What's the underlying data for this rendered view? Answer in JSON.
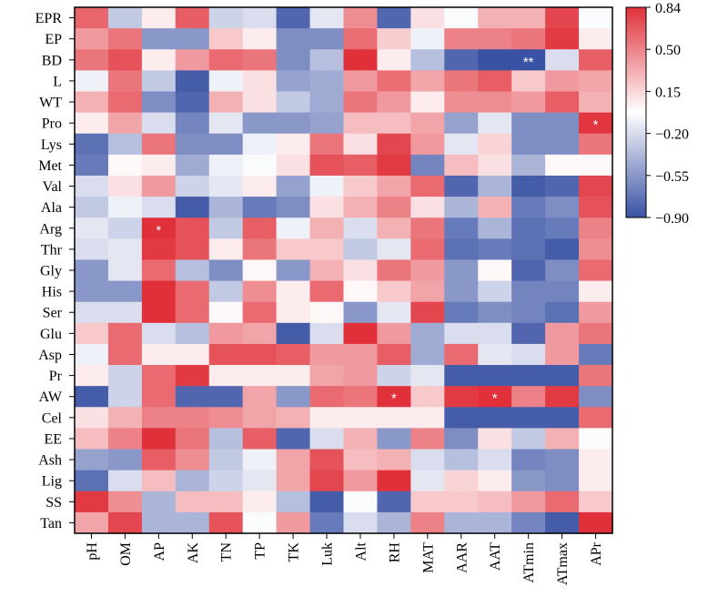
{
  "chart_data": {
    "type": "heatmap",
    "rows": [
      "EPR",
      "EP",
      "BD",
      "L",
      "WT",
      "Pro",
      "Lys",
      "Met",
      "Val",
      "Ala",
      "Arg",
      "Thr",
      "Gly",
      "His",
      "Ser",
      "Glu",
      "Asp",
      "Pr",
      "AW",
      "Cel",
      "EE",
      "Ash",
      "Lig",
      "SS",
      "Tan"
    ],
    "cols": [
      "pH",
      "OM",
      "AP",
      "AK",
      "TN",
      "TP",
      "TK",
      "Luk",
      "Alt",
      "RH",
      "MAT",
      "AAR",
      "AAT",
      "ATmin",
      "ATmax",
      "APr"
    ],
    "values": [
      [
        0.62,
        -0.3,
        0.05,
        0.65,
        -0.25,
        -0.2,
        -0.8,
        -0.15,
        0.45,
        -0.8,
        0.1,
        -0.05,
        0.3,
        0.3,
        0.75,
        -0.05
      ],
      [
        0.4,
        0.55,
        -0.55,
        -0.55,
        0.2,
        0.05,
        -0.6,
        -0.6,
        0.58,
        0.18,
        -0.1,
        0.5,
        0.5,
        0.55,
        0.8,
        0.05
      ],
      [
        0.55,
        0.7,
        0.05,
        0.4,
        0.6,
        0.55,
        -0.6,
        -0.35,
        0.84,
        0.05,
        -0.35,
        -0.8,
        -0.9,
        -0.9,
        -0.2,
        0.65
      ],
      [
        -0.1,
        0.55,
        -0.3,
        -0.85,
        -0.1,
        0.1,
        -0.5,
        -0.45,
        0.4,
        0.58,
        0.35,
        0.55,
        0.65,
        0.2,
        0.4,
        0.35
      ],
      [
        0.3,
        0.6,
        -0.6,
        -0.8,
        0.3,
        0.1,
        -0.3,
        -0.45,
        0.55,
        0.4,
        0.05,
        0.45,
        0.45,
        0.4,
        0.65,
        0.3
      ],
      [
        0.05,
        0.35,
        -0.2,
        -0.65,
        -0.15,
        -0.55,
        -0.55,
        -0.5,
        0.25,
        0.25,
        0.35,
        -0.5,
        -0.15,
        -0.6,
        -0.6,
        0.82
      ],
      [
        -0.75,
        -0.35,
        0.55,
        -0.6,
        -0.6,
        -0.1,
        0.05,
        0.55,
        0.1,
        0.75,
        0.4,
        -0.15,
        0.15,
        -0.6,
        -0.6,
        0.55
      ],
      [
        -0.7,
        0.0,
        0.05,
        -0.45,
        -0.1,
        -0.05,
        0.1,
        0.7,
        0.65,
        0.8,
        -0.65,
        0.25,
        0.1,
        -0.4,
        0.0,
        0.0
      ],
      [
        -0.2,
        0.1,
        0.4,
        -0.25,
        -0.15,
        0.05,
        -0.5,
        -0.1,
        0.2,
        0.35,
        0.6,
        -0.8,
        -0.4,
        -0.85,
        -0.8,
        0.75
      ],
      [
        -0.3,
        -0.1,
        -0.2,
        -0.85,
        -0.4,
        -0.7,
        -0.6,
        0.1,
        0.3,
        0.5,
        0.1,
        -0.4,
        0.3,
        -0.7,
        -0.6,
        0.7
      ],
      [
        -0.15,
        -0.25,
        0.84,
        0.7,
        -0.3,
        0.65,
        -0.1,
        0.3,
        -0.2,
        0.3,
        0.55,
        -0.7,
        -0.4,
        -0.75,
        -0.7,
        0.5
      ],
      [
        -0.2,
        -0.15,
        0.8,
        0.7,
        0.05,
        0.55,
        0.2,
        0.2,
        -0.3,
        -0.15,
        0.6,
        -0.75,
        -0.7,
        -0.75,
        -0.85,
        0.45
      ],
      [
        -0.55,
        -0.15,
        0.6,
        -0.35,
        -0.6,
        0.0,
        -0.55,
        0.3,
        0.1,
        0.55,
        0.4,
        -0.55,
        0.0,
        -0.8,
        -0.6,
        0.6
      ],
      [
        -0.55,
        -0.55,
        0.84,
        0.6,
        -0.3,
        0.45,
        0.05,
        0.6,
        0.0,
        0.2,
        0.35,
        -0.55,
        -0.25,
        -0.65,
        -0.65,
        0.05
      ],
      [
        -0.2,
        -0.2,
        0.84,
        0.6,
        0.0,
        0.6,
        0.05,
        0.0,
        -0.55,
        -0.15,
        0.75,
        -0.7,
        -0.6,
        -0.65,
        -0.75,
        0.4
      ],
      [
        0.2,
        0.6,
        -0.2,
        -0.35,
        0.4,
        0.35,
        -0.85,
        -0.2,
        0.84,
        0.4,
        -0.45,
        -0.2,
        -0.2,
        -0.8,
        0.4,
        0.55
      ],
      [
        -0.1,
        0.6,
        0.05,
        0.05,
        0.7,
        0.7,
        0.65,
        0.4,
        0.4,
        0.65,
        -0.45,
        0.6,
        -0.15,
        -0.2,
        0.4,
        -0.7
      ],
      [
        0.05,
        -0.25,
        0.6,
        0.8,
        0.05,
        0.05,
        0.05,
        0.35,
        0.4,
        -0.25,
        -0.15,
        -0.85,
        -0.85,
        -0.85,
        -0.85,
        0.55
      ],
      [
        -0.85,
        -0.25,
        0.6,
        -0.8,
        -0.8,
        0.35,
        -0.55,
        0.6,
        0.55,
        0.84,
        0.2,
        0.8,
        0.84,
        0.5,
        0.8,
        -0.6
      ],
      [
        0.1,
        0.3,
        0.5,
        0.5,
        0.45,
        0.35,
        0.3,
        0.05,
        0.05,
        0.05,
        0.05,
        -0.85,
        -0.85,
        -0.85,
        -0.85,
        0.6
      ],
      [
        0.25,
        0.5,
        0.84,
        0.55,
        -0.35,
        0.65,
        -0.8,
        -0.2,
        0.3,
        -0.55,
        0.5,
        -0.6,
        0.1,
        -0.3,
        0.3,
        -0.05
      ],
      [
        -0.5,
        -0.55,
        0.65,
        0.45,
        -0.3,
        -0.1,
        0.35,
        0.7,
        0.25,
        0.3,
        -0.2,
        -0.35,
        -0.2,
        -0.65,
        -0.6,
        0.05
      ],
      [
        -0.75,
        -0.2,
        0.25,
        -0.4,
        -0.25,
        -0.15,
        0.35,
        0.75,
        0.4,
        0.84,
        -0.15,
        0.15,
        0.05,
        -0.55,
        -0.6,
        0.05
      ],
      [
        0.8,
        0.45,
        -0.4,
        0.25,
        0.25,
        0.05,
        -0.35,
        -0.85,
        -0.05,
        -0.8,
        0.2,
        0.2,
        0.25,
        0.4,
        0.6,
        0.2
      ],
      [
        0.35,
        0.75,
        -0.4,
        -0.4,
        0.7,
        -0.05,
        0.4,
        -0.7,
        -0.2,
        -0.4,
        0.5,
        -0.4,
        -0.4,
        -0.65,
        -0.85,
        0.84
      ]
    ],
    "markers": [
      {
        "row": "BD",
        "col": "ATmin",
        "label": "**"
      },
      {
        "row": "Pro",
        "col": "APr",
        "label": "*"
      },
      {
        "row": "Arg",
        "col": "AP",
        "label": "*"
      },
      {
        "row": "AW",
        "col": "RH",
        "label": "*"
      },
      {
        "row": "AW",
        "col": "AAT",
        "label": "*"
      }
    ],
    "colorbar": {
      "range": [
        -0.9,
        0.84
      ],
      "ticks": [
        "0.84",
        "0.50",
        "0.15",
        "−0.20",
        "−0.55",
        "−0.90"
      ],
      "colors": [
        "#3a52a4",
        "#ffffff",
        "#e0313a"
      ]
    }
  }
}
